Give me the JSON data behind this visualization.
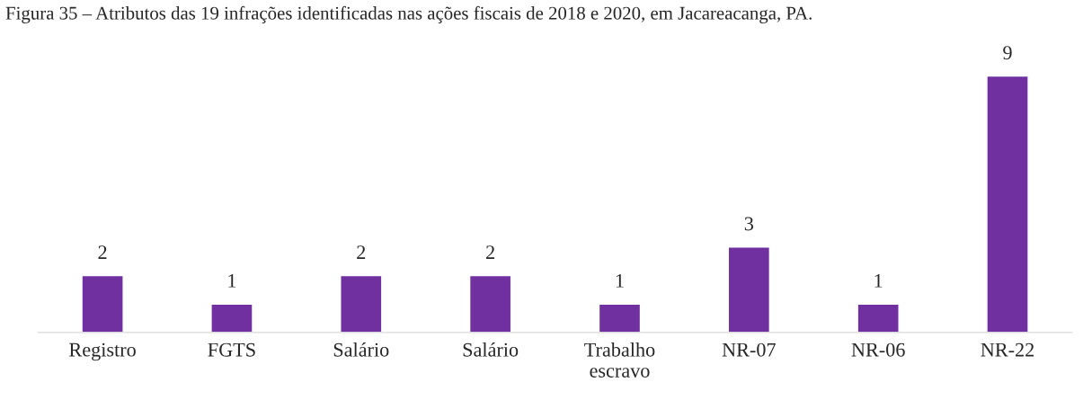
{
  "chart_data": {
    "type": "bar",
    "title": "Figura 35 – Atributos das 19 infrações identificadas nas ações fiscais de 2018 e 2020, em Jacareacanga, PA.",
    "categories": [
      "Registro",
      "FGTS",
      "Salário",
      "Salário",
      "Trabalho escravo",
      "NR-07",
      "NR-06",
      "NR-22"
    ],
    "values": [
      2,
      1,
      2,
      2,
      1,
      3,
      1,
      9
    ],
    "color": "#7030a0",
    "data_labels": true,
    "grid": false,
    "legend": false
  }
}
